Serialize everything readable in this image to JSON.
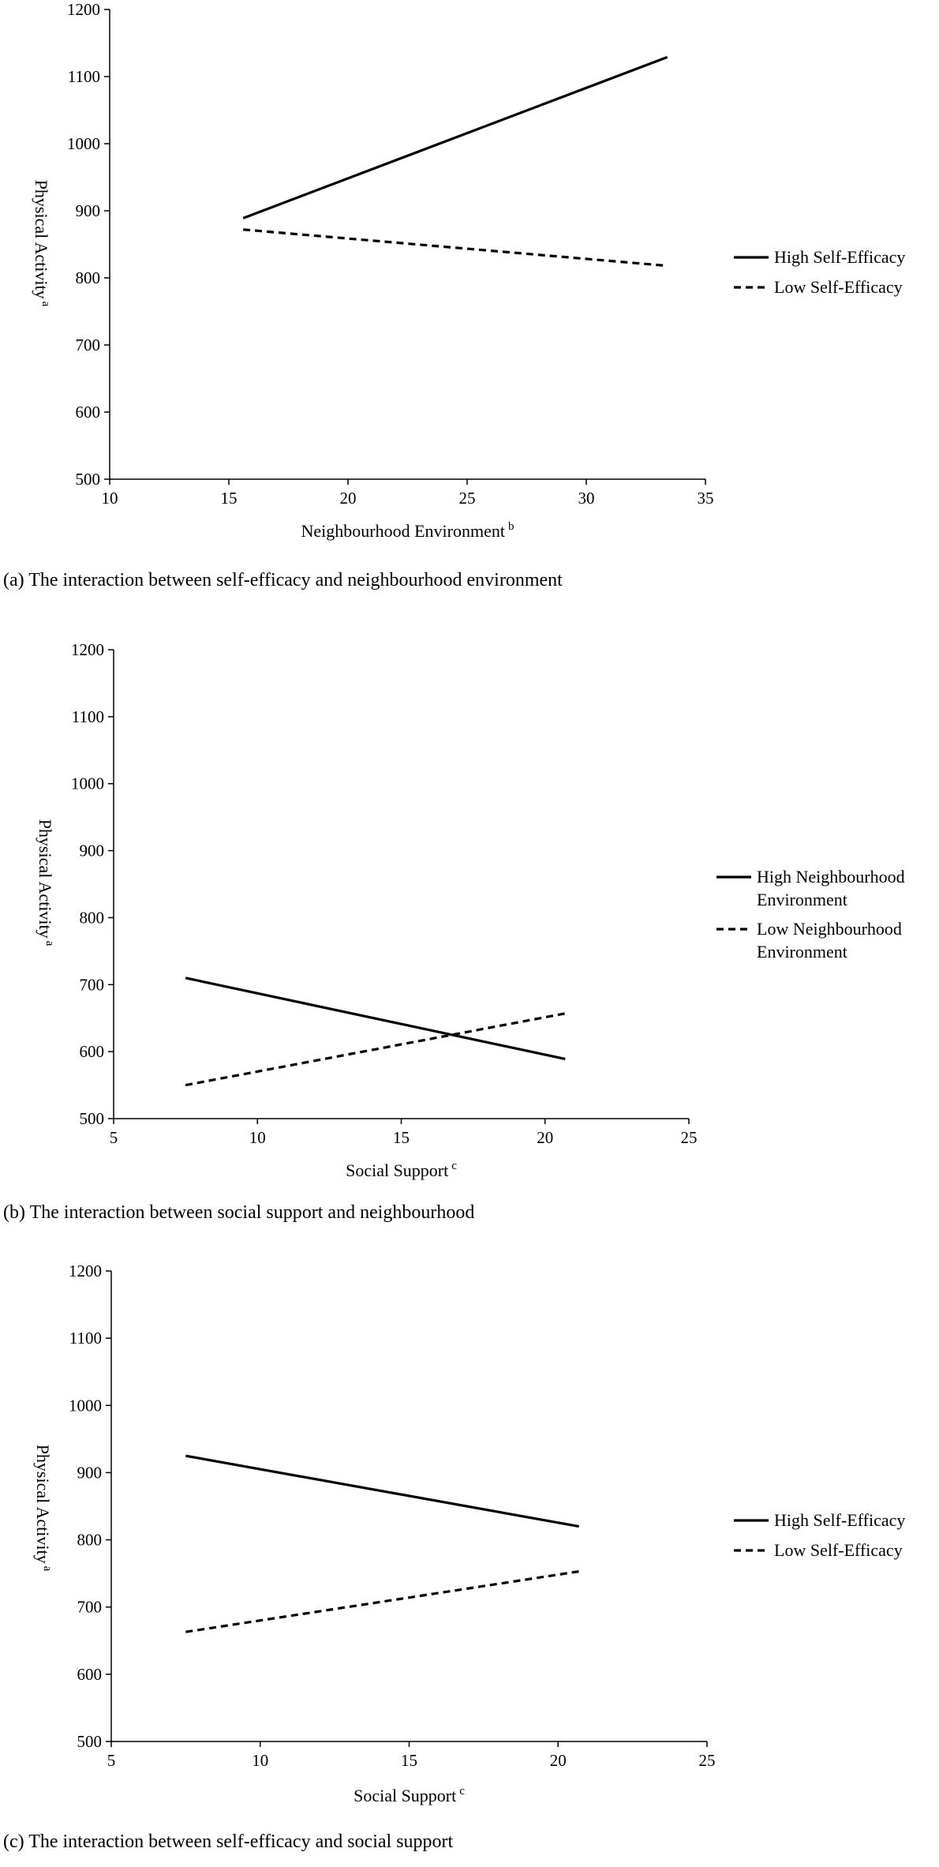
{
  "chart_data": [
    {
      "type": "line",
      "caption": "(a) The interaction between self-efficacy and neighbourhood environment",
      "xlabel": "Neighbourhood Environment",
      "xlabel_sup": "b",
      "ylabel": "Physical Activity",
      "ylabel_sup": "a",
      "xlim": [
        10,
        35
      ],
      "ylim": [
        500,
        1200
      ],
      "xticks": [
        "10",
        "15",
        "20",
        "25",
        "30",
        "35"
      ],
      "yticks": [
        "500",
        "600",
        "700",
        "800",
        "900",
        "1000",
        "1100",
        "1200"
      ],
      "legend_position": "right",
      "series": [
        {
          "name": "High Self-Efficacy",
          "style": "solid",
          "x": [
            15.6,
            33.4
          ],
          "y": [
            889,
            1129
          ]
        },
        {
          "name": "Low Self-Efficacy",
          "style": "dashed",
          "x": [
            15.6,
            33.4
          ],
          "y": [
            872,
            818
          ]
        }
      ]
    },
    {
      "type": "line",
      "caption": "(b) The interaction between social support and neighbourhood",
      "xlabel": "Social Support",
      "xlabel_sup": "c",
      "ylabel": "Physical Activity",
      "ylabel_sup": "a",
      "xlim": [
        5,
        25
      ],
      "ylim": [
        500,
        1200
      ],
      "xticks": [
        "5",
        "10",
        "15",
        "20",
        "25"
      ],
      "yticks": [
        "500",
        "600",
        "700",
        "800",
        "900",
        "1000",
        "1100",
        "1200"
      ],
      "legend_position": "right",
      "series": [
        {
          "name": "High Neighbourhood Environment",
          "name_lines": [
            "High Neighbourhood",
            "Environment"
          ],
          "style": "solid",
          "x": [
            7.5,
            20.7
          ],
          "y": [
            710,
            589
          ]
        },
        {
          "name": "Low Neighbourhood Environment",
          "name_lines": [
            "Low Neighbourhood",
            "Environment"
          ],
          "style": "dashed",
          "x": [
            7.5,
            20.7
          ],
          "y": [
            550,
            657
          ]
        }
      ]
    },
    {
      "type": "line",
      "caption": "(c) The interaction between self-efficacy and social support",
      "xlabel": "Social Support",
      "xlabel_sup": "c",
      "ylabel": "Physical Activity",
      "ylabel_sup": "a",
      "xlim": [
        5,
        25
      ],
      "ylim": [
        500,
        1200
      ],
      "xticks": [
        "5",
        "10",
        "15",
        "20",
        "25"
      ],
      "yticks": [
        "500",
        "600",
        "700",
        "800",
        "900",
        "1000",
        "1100",
        "1200"
      ],
      "legend_position": "right",
      "series": [
        {
          "name": "High Self-Efficacy",
          "style": "solid",
          "x": [
            7.5,
            20.7
          ],
          "y": [
            925,
            820
          ]
        },
        {
          "name": "Low Self-Efficacy",
          "style": "dashed",
          "x": [
            7.5,
            20.7
          ],
          "y": [
            663,
            753
          ]
        }
      ]
    }
  ]
}
